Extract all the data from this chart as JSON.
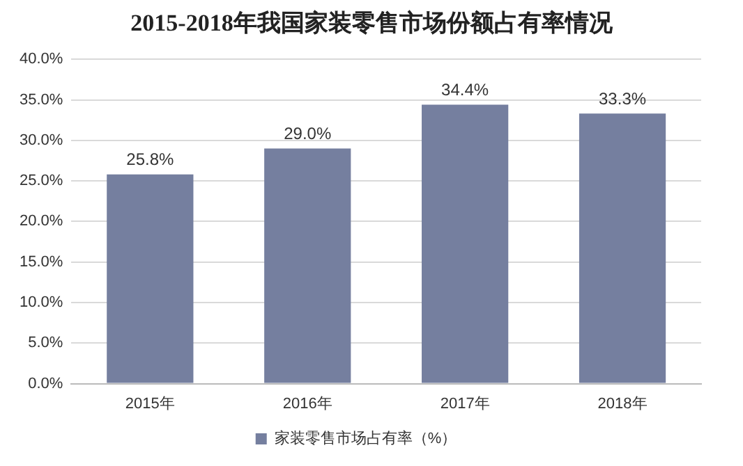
{
  "chart_data": {
    "type": "bar",
    "title": "2015-2018年我国家装零售市场份额占有率情况",
    "categories": [
      "2015年",
      "2016年",
      "2017年",
      "2018年"
    ],
    "series": [
      {
        "name": "家装零售市场占有率（%）",
        "color": "#757f9f",
        "values": [
          25.8,
          29.0,
          34.4,
          33.3
        ],
        "value_labels": [
          "25.8%",
          "29.0%",
          "34.4%",
          "33.3%"
        ]
      }
    ],
    "ylim": [
      0,
      40
    ],
    "yticks": [
      {
        "value": 0,
        "label": "0.0%"
      },
      {
        "value": 5,
        "label": "5.0%"
      },
      {
        "value": 10,
        "label": "10.0%"
      },
      {
        "value": 15,
        "label": "15.0%"
      },
      {
        "value": 20,
        "label": "20.0%"
      },
      {
        "value": 25,
        "label": "25.0%"
      },
      {
        "value": 30,
        "label": "30.0%"
      },
      {
        "value": 35,
        "label": "35.0%"
      },
      {
        "value": 40,
        "label": "40.0%"
      }
    ],
    "grid": "y",
    "legend": "bottom"
  }
}
